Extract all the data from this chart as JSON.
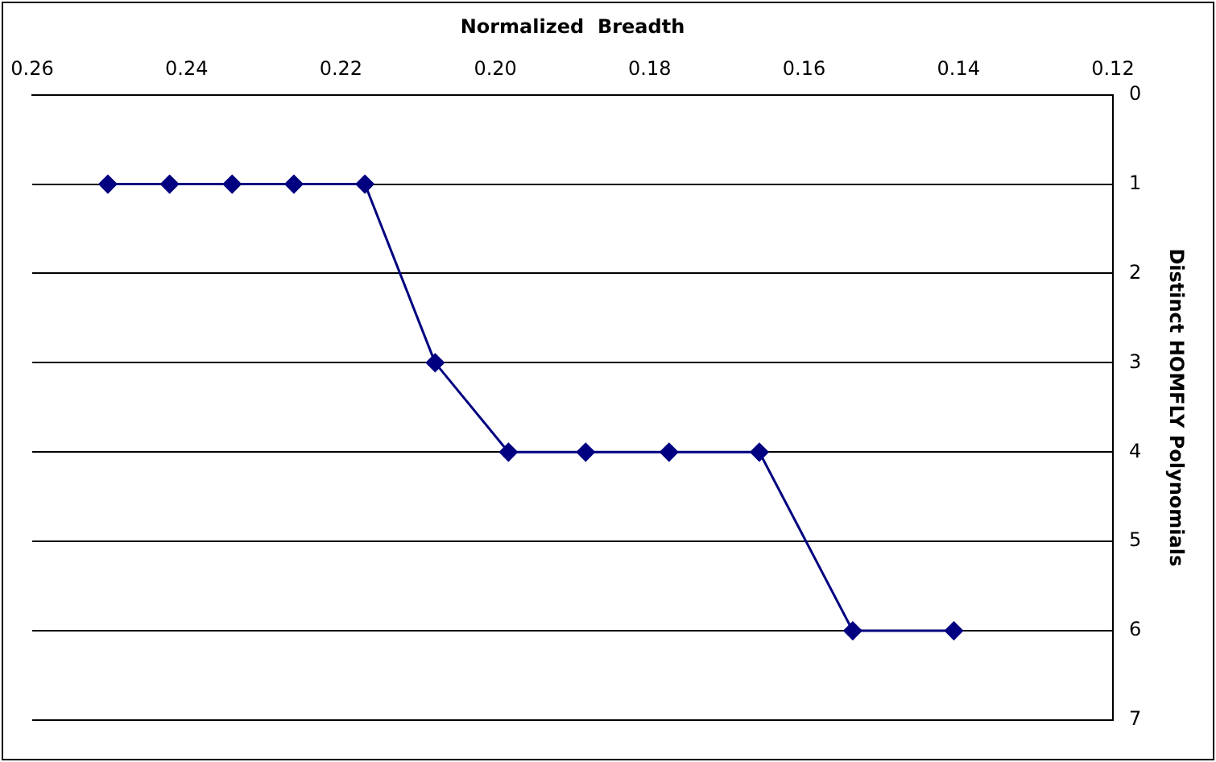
{
  "chart_data": {
    "type": "line",
    "xlabel": "Normalized  Breadth",
    "ylabel": "Distinct HOMFLY Polynomials",
    "x": [
      0.2502,
      0.2422,
      0.2341,
      0.2261,
      0.2169,
      0.2078,
      0.1983,
      0.1883,
      0.1775,
      0.1658,
      0.1537,
      0.1406
    ],
    "series": [
      {
        "color": "#000080",
        "values": [
          1,
          1,
          1,
          1,
          1,
          3,
          4,
          4,
          4,
          4,
          6,
          6
        ]
      }
    ],
    "xlim": [
      0.26,
      0.12
    ],
    "xticks": [
      0.12,
      0.14,
      0.16,
      0.18,
      {
        "value": 0.2,
        "label": "0.20"
      },
      0.22,
      0.24,
      0.26
    ],
    "ylim": [
      7,
      0
    ],
    "yticks": [
      0,
      1,
      2,
      3,
      4,
      5,
      6,
      7
    ],
    "grid": "y",
    "legend": false,
    "marker": "diamond",
    "line_style": "solid"
  }
}
